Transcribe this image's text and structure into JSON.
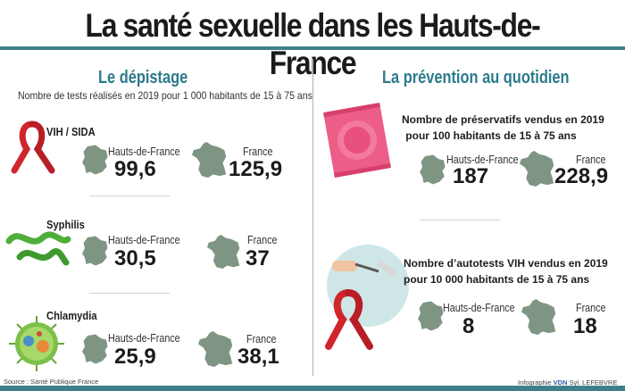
{
  "title": "La santé sexuelle dans les Hauts-de-France",
  "left": {
    "heading": "Le dépistage",
    "subtitle": "Nombre de tests réalisés en 2019 pour 1 000 habitants de 15 à 75 ans",
    "rows": [
      {
        "label": "VIH / SIDA",
        "region_label": "Hauts-de-France",
        "region_value": "99,6",
        "france_label": "France",
        "france_value": "125,9",
        "icon": "ribbon-icon"
      },
      {
        "label": "Syphilis",
        "region_label": "Hauts-de-France",
        "region_value": "30,5",
        "france_label": "France",
        "france_value": "37",
        "icon": "bacteria-icon"
      },
      {
        "label": "Chlamydia",
        "region_label": "Hauts-de-France",
        "region_value": "25,9",
        "france_label": "France",
        "france_value": "38,1",
        "icon": "cell-icon"
      }
    ]
  },
  "right": {
    "heading": "La prévention au quotidien",
    "blocks": [
      {
        "label_line1": "Nombre de préservatifs vendus en 2019",
        "label_line2": "pour 100 habitants de 15 à 75 ans",
        "region_label": "Hauts-de-France",
        "region_value": "187",
        "france_label": "France",
        "france_value": "228,9",
        "icon": "condom-icon"
      },
      {
        "label_line1": "Nombre d’autotests VIH vendus en 2019",
        "label_line2": "pour 10 000 habitants de 15 à 75 ans",
        "region_label": "Hauts-de-France",
        "region_value": "8",
        "france_label": "France",
        "france_value": "18",
        "icon": "self-test-icon"
      }
    ]
  },
  "footer": {
    "source": "Source : Santé Publique France",
    "credit": "Infographie",
    "credit_brand": "VDN",
    "credit_author": "Syl. LEFEBVRE"
  },
  "colors": {
    "accent": "#2c7b8c",
    "band": "#3f7f8a",
    "map": "#7f9583",
    "ribbon": "#d0252d",
    "condom": "#e84d7a"
  }
}
